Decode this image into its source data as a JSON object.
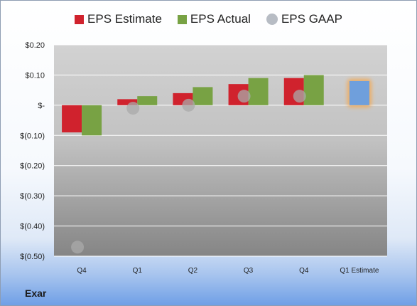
{
  "company": "Exar",
  "colors": {
    "estimate": "#d0222d",
    "actual": "#78a244",
    "gaap": "#a9a9a9",
    "future_estimate": "#6f9fdc",
    "future_glow": "#f5a84f"
  },
  "chart_data": {
    "type": "bar",
    "title": "",
    "xlabel": "",
    "ylabel": "",
    "ylim": [
      -0.5,
      0.2
    ],
    "yticks": [
      0.2,
      0.1,
      0,
      -0.1,
      -0.2,
      -0.3,
      -0.4,
      -0.5
    ],
    "ytick_labels": [
      "$0.20",
      "$0.10",
      "$-",
      "$(0.10)",
      "$(0.20)",
      "$(0.30)",
      "$(0.40)",
      "$(0.50)"
    ],
    "categories": [
      "Q4",
      "Q1",
      "Q2",
      "Q3",
      "Q4",
      "Q1 Estimate"
    ],
    "legend_position": "top",
    "series": [
      {
        "name": "EPS Estimate",
        "kind": "bar",
        "values": [
          -0.09,
          0.02,
          0.04,
          0.07,
          0.09,
          null
        ]
      },
      {
        "name": "EPS Actual",
        "kind": "bar",
        "values": [
          -0.1,
          0.03,
          0.06,
          0.09,
          0.1,
          null
        ]
      },
      {
        "name": "EPS GAAP",
        "kind": "point",
        "values": [
          -0.47,
          -0.01,
          0.0,
          0.03,
          0.03,
          null
        ]
      }
    ],
    "future_estimate": {
      "category": "Q1 Estimate",
      "value": 0.08
    }
  }
}
